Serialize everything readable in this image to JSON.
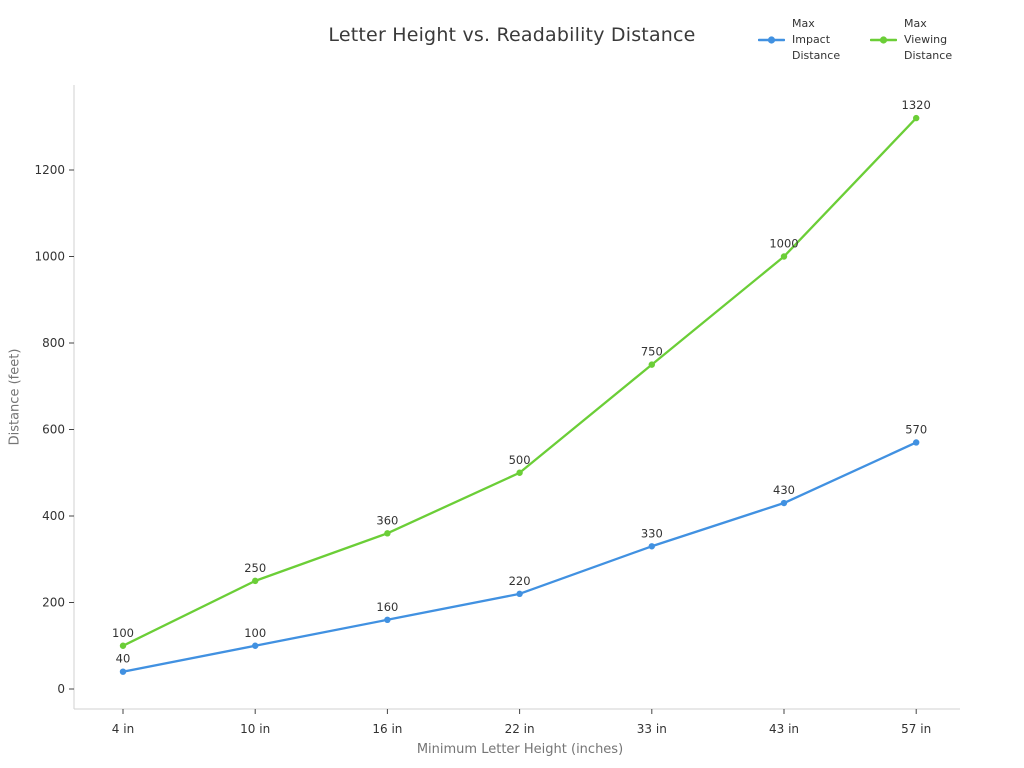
{
  "chart_data": {
    "type": "line",
    "title": "Letter Height vs. Readability Distance",
    "xlabel": "Minimum Letter Height (inches)",
    "ylabel": "Distance (feet)",
    "categories": [
      "4 in",
      "10 in",
      "16 in",
      "22 in",
      "33 in",
      "43 in",
      "57 in"
    ],
    "series": [
      {
        "name": "Max Impact Distance",
        "color": "#4191e1",
        "values": [
          40,
          100,
          160,
          220,
          330,
          430,
          570
        ]
      },
      {
        "name": "Max Viewing Distance",
        "color": "#6bce37",
        "values": [
          100,
          250,
          360,
          500,
          750,
          1000,
          1320
        ]
      }
    ],
    "y_ticks": [
      0,
      200,
      400,
      600,
      800,
      1000,
      1200
    ],
    "ylim": [
      0,
      1400
    ],
    "grid": false,
    "point_labels_shown": true,
    "legend_position": "top-right",
    "colors": {
      "background": "#ffffff",
      "axis_line": "#d2d2d2",
      "tick_mark": "#444444",
      "tick_label": "#333333",
      "title_text": "#3a3a3a",
      "axis_title_text": "#757575",
      "point_label_text": "#333333"
    }
  }
}
